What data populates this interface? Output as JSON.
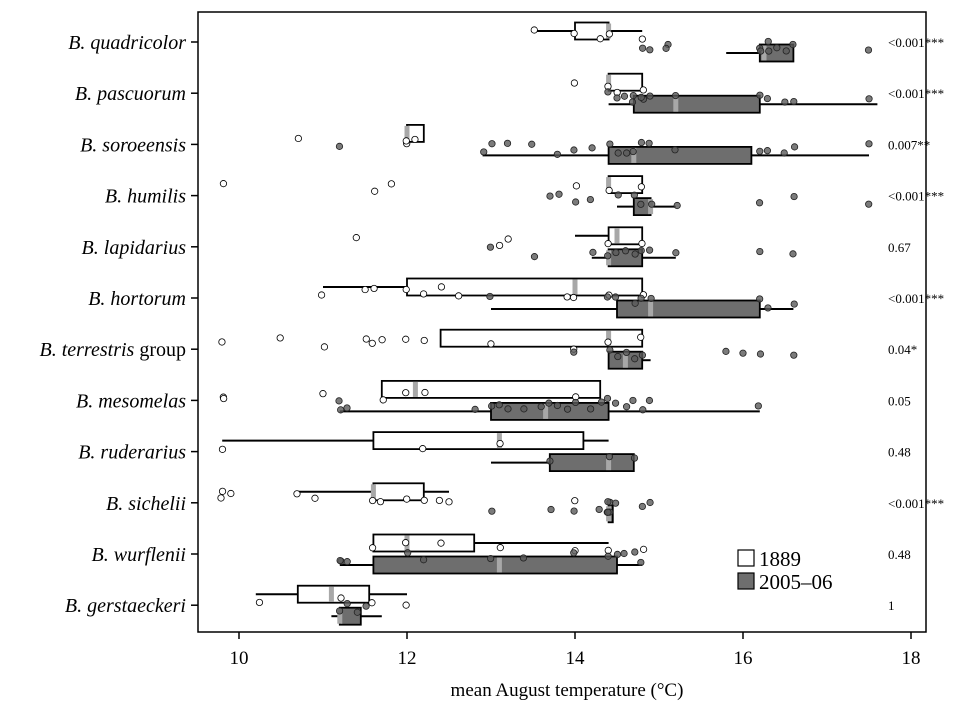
{
  "chart_data": {
    "type": "boxplot",
    "xlabel": "mean August temperature (°C)",
    "xlim": [
      9.6,
      18.5
    ],
    "xticks": [
      10,
      12,
      14,
      16,
      18
    ],
    "colors": {
      "y1889": "#ffffff",
      "y2005": "#6e6e6e",
      "median": "#a8a8a8",
      "stroke": "#000000"
    },
    "series": [
      {
        "name": "1889",
        "fill": "white"
      },
      {
        "name": "2005–06",
        "fill": "grey"
      }
    ],
    "species": [
      {
        "name": "B. quadricolor",
        "pvalue": "<0.001***",
        "b1889": {
          "wmin": 13.5,
          "q1": 14.0,
          "median": 14.4,
          "q3": 14.4,
          "wmax": 14.8
        },
        "b2005": {
          "wmin": 15.8,
          "q1": 16.2,
          "median": 16.25,
          "q3": 16.6,
          "wmax": 16.6
        },
        "pts1889": [
          13.5,
          14.0,
          14.3,
          14.4,
          14.8
        ],
        "pts2005": [
          14.8,
          14.9,
          15.1,
          15.1,
          16.2,
          16.2,
          16.3,
          16.3,
          16.4,
          16.5,
          16.6,
          17.5
        ]
      },
      {
        "name": "B. pascuorum",
        "pvalue": "<0.001***",
        "b1889": {
          "wmin": 14.4,
          "q1": 14.4,
          "median": 14.4,
          "q3": 14.8,
          "wmax": 14.8
        },
        "b2005": {
          "wmin": 14.4,
          "q1": 14.7,
          "median": 15.2,
          "q3": 16.2,
          "wmax": 17.6
        },
        "pts1889": [
          14.0,
          14.4,
          14.5,
          14.8
        ],
        "pts2005": [
          14.4,
          14.5,
          14.6,
          14.7,
          14.7,
          14.8,
          14.8,
          14.9,
          15.2,
          16.2,
          16.3,
          16.5,
          16.6,
          17.5
        ]
      },
      {
        "name": "B. soroeensis",
        "pvalue": "0.007**",
        "b1889": {
          "wmin": 12.0,
          "q1": 12.0,
          "median": 12.0,
          "q3": 12.2,
          "wmax": 12.2
        },
        "b2005": {
          "wmin": 12.9,
          "q1": 14.4,
          "median": 14.7,
          "q3": 16.1,
          "wmax": 17.5
        },
        "pts1889": [
          10.7,
          12.0,
          12.0,
          12.1
        ],
        "pts2005": [
          11.2,
          12.9,
          13.0,
          13.2,
          13.5,
          13.8,
          14.0,
          14.2,
          14.4,
          14.5,
          14.6,
          14.7,
          14.8,
          14.9,
          15.2,
          16.2,
          16.3,
          16.5,
          16.6,
          17.5
        ]
      },
      {
        "name": "B. humilis",
        "pvalue": "<0.001***",
        "b1889": {
          "wmin": 14.4,
          "q1": 14.4,
          "median": 14.4,
          "q3": 14.8,
          "wmax": 14.8
        },
        "b2005": {
          "wmin": 14.5,
          "q1": 14.7,
          "median": 14.9,
          "q3": 14.9,
          "wmax": 15.2
        },
        "pts1889": [
          9.8,
          11.6,
          11.8,
          14.0,
          14.4,
          14.8
        ],
        "pts2005": [
          13.7,
          13.8,
          14.0,
          14.2,
          14.5,
          14.7,
          14.8,
          14.9,
          15.2,
          16.2,
          16.6,
          17.5
        ]
      },
      {
        "name": "B. lapidarius",
        "pvalue": "0.67",
        "b1889": {
          "wmin": 14.0,
          "q1": 14.4,
          "median": 14.5,
          "q3": 14.8,
          "wmax": 14.8
        },
        "b2005": {
          "wmin": 14.2,
          "q1": 14.4,
          "median": 14.4,
          "q3": 14.8,
          "wmax": 15.2
        },
        "pts1889": [
          11.4,
          13.1,
          13.2,
          14.4,
          14.8
        ],
        "pts2005": [
          13.0,
          13.5,
          14.2,
          14.4,
          14.5,
          14.6,
          14.7,
          14.8,
          14.9,
          15.2,
          16.2,
          16.6
        ]
      },
      {
        "name": "B. hortorum",
        "pvalue": "<0.001***",
        "b1889": {
          "wmin": 11.0,
          "q1": 12.0,
          "median": 14.0,
          "q3": 14.8,
          "wmax": 14.8
        },
        "b2005": {
          "wmin": 13.0,
          "q1": 14.5,
          "median": 14.9,
          "q3": 16.2,
          "wmax": 16.6
        },
        "pts1889": [
          11.0,
          11.5,
          11.6,
          12.0,
          12.2,
          12.4,
          12.6,
          13.9,
          14.0,
          14.4,
          14.8
        ],
        "pts2005": [
          13.0,
          14.4,
          14.5,
          14.7,
          14.8,
          14.9,
          16.2,
          16.3,
          16.6
        ]
      },
      {
        "name": "B. terrestris group",
        "pvalue": "0.04*",
        "b1889": {
          "wmin": 12.4,
          "q1": 12.4,
          "median": 14.4,
          "q3": 14.8,
          "wmax": 14.8
        },
        "b2005": {
          "wmin": 14.4,
          "q1": 14.4,
          "median": 14.6,
          "q3": 14.8,
          "wmax": 14.9
        },
        "pts1889": [
          9.8,
          10.5,
          11.0,
          11.5,
          11.6,
          11.7,
          12.0,
          12.2,
          13.0,
          14.0,
          14.4,
          14.8
        ],
        "pts2005": [
          14.0,
          14.4,
          14.5,
          14.6,
          14.7,
          14.8,
          15.8,
          16.0,
          16.2,
          16.6
        ]
      },
      {
        "name": "B. mesomelas",
        "pvalue": "0.05",
        "b1889": {
          "wmin": 11.7,
          "q1": 11.7,
          "median": 12.1,
          "q3": 14.3,
          "wmax": 14.3
        },
        "b2005": {
          "wmin": 11.2,
          "q1": 13.0,
          "median": 13.65,
          "q3": 14.4,
          "wmax": 16.2
        },
        "pts1889": [
          9.8,
          9.8,
          11.0,
          11.7,
          12.0,
          12.2,
          14.0
        ],
        "pts2005": [
          11.2,
          11.2,
          11.3,
          12.8,
          13.0,
          13.1,
          13.2,
          13.4,
          13.6,
          13.7,
          13.8,
          13.9,
          14.0,
          14.2,
          14.3,
          14.4,
          14.5,
          14.6,
          14.7,
          14.8,
          14.9,
          16.2
        ]
      },
      {
        "name": "B. ruderarius",
        "pvalue": "0.48",
        "b1889": {
          "wmin": 9.8,
          "q1": 11.6,
          "median": 13.1,
          "q3": 14.1,
          "wmax": 14.4
        },
        "b2005": {
          "wmin": 13.0,
          "q1": 13.7,
          "median": 14.4,
          "q3": 14.7,
          "wmax": 14.7
        },
        "pts1889": [
          9.8,
          12.2,
          13.1
        ],
        "pts2005": [
          13.7,
          14.4,
          14.7
        ]
      },
      {
        "name": "B. sichelii",
        "pvalue": "<0.001***",
        "b1889": {
          "wmin": 10.7,
          "q1": 11.6,
          "median": 11.6,
          "q3": 12.2,
          "wmax": 12.5
        },
        "b2005": {
          "wmin": 14.4,
          "q1": 14.4,
          "median": 14.4,
          "q3": 14.45,
          "wmax": 14.45
        },
        "pts1889": [
          9.8,
          9.8,
          9.9,
          10.7,
          10.9,
          11.6,
          11.7,
          12.0,
          12.2,
          12.4,
          12.5,
          14.0
        ],
        "pts2005": [
          13.0,
          13.7,
          14.0,
          14.3,
          14.4,
          14.4,
          14.4,
          14.4,
          14.4,
          14.5,
          14.8,
          14.9
        ]
      },
      {
        "name": "B. wurflenii",
        "pvalue": "0.48",
        "b1889": {
          "wmin": 11.6,
          "q1": 11.6,
          "median": 12.0,
          "q3": 12.8,
          "wmax": 14.4
        },
        "b2005": {
          "wmin": 11.2,
          "q1": 11.6,
          "median": 13.1,
          "q3": 14.5,
          "wmax": 14.8
        },
        "pts1889": [
          11.6,
          12.0,
          12.4,
          13.1,
          14.0,
          14.4,
          14.8
        ],
        "pts2005": [
          11.2,
          11.2,
          11.3,
          12.0,
          12.2,
          13.0,
          13.4,
          14.0,
          14.4,
          14.5,
          14.6,
          14.7,
          14.8
        ]
      },
      {
        "name": "B. gerstaeckeri",
        "pvalue": "1",
        "b1889": {
          "wmin": 10.2,
          "q1": 10.7,
          "median": 11.1,
          "q3": 11.55,
          "wmax": 12.0
        },
        "b2005": {
          "wmin": 11.1,
          "q1": 11.2,
          "median": 11.2,
          "q3": 11.45,
          "wmax": 11.7
        },
        "pts1889": [
          10.25,
          11.2,
          11.6,
          12.0
        ],
        "pts2005": [
          11.2,
          11.3,
          11.4,
          11.5
        ]
      }
    ]
  }
}
